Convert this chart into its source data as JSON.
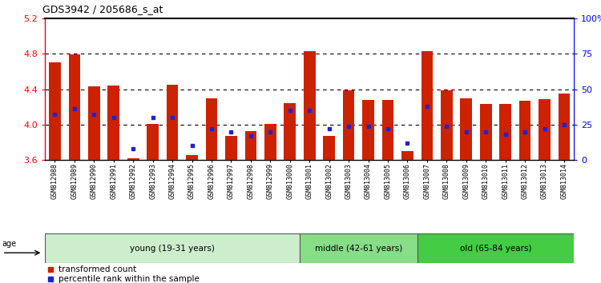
{
  "title": "GDS3942 / 205686_s_at",
  "samples": [
    "GSM812988",
    "GSM812989",
    "GSM812990",
    "GSM812991",
    "GSM812992",
    "GSM812993",
    "GSM812994",
    "GSM812995",
    "GSM812996",
    "GSM812997",
    "GSM812998",
    "GSM812999",
    "GSM813000",
    "GSM813001",
    "GSM813002",
    "GSM813003",
    "GSM813004",
    "GSM813005",
    "GSM813006",
    "GSM813007",
    "GSM813008",
    "GSM813009",
    "GSM813010",
    "GSM813011",
    "GSM813012",
    "GSM813013",
    "GSM813014"
  ],
  "transformed_count": [
    4.7,
    4.79,
    4.43,
    4.44,
    3.62,
    4.01,
    4.45,
    3.65,
    4.3,
    3.87,
    3.93,
    4.01,
    4.24,
    4.83,
    3.87,
    4.39,
    4.28,
    4.28,
    3.7,
    4.83,
    4.39,
    4.3,
    4.23,
    4.23,
    4.27,
    4.29,
    4.35
  ],
  "percentile_rank": [
    32,
    36,
    32,
    30,
    8,
    30,
    30,
    10,
    22,
    20,
    17,
    20,
    35,
    35,
    22,
    24,
    24,
    22,
    12,
    38,
    24,
    20,
    20,
    18,
    20,
    22,
    25
  ],
  "bar_color": "#cc2200",
  "marker_color": "#2222cc",
  "ymin": 3.6,
  "ymax": 5.2,
  "yticks_left": [
    3.6,
    4.0,
    4.4,
    4.8,
    5.2
  ],
  "yticks_right": [
    0,
    25,
    50,
    75,
    100
  ],
  "grid_values": [
    4.0,
    4.4,
    4.8
  ],
  "age_groups": [
    {
      "label": "young (19-31 years)",
      "start": 0,
      "end": 13,
      "color": "#cceecc"
    },
    {
      "label": "middle (42-61 years)",
      "start": 13,
      "end": 19,
      "color": "#88dd88"
    },
    {
      "label": "old (65-84 years)",
      "start": 19,
      "end": 27,
      "color": "#44cc44"
    }
  ],
  "legend_items": [
    {
      "label": "transformed count",
      "color": "#cc2200"
    },
    {
      "label": "percentile rank within the sample",
      "color": "#2222cc"
    }
  ],
  "xlabels_bgcolor": "#d8d8d8"
}
